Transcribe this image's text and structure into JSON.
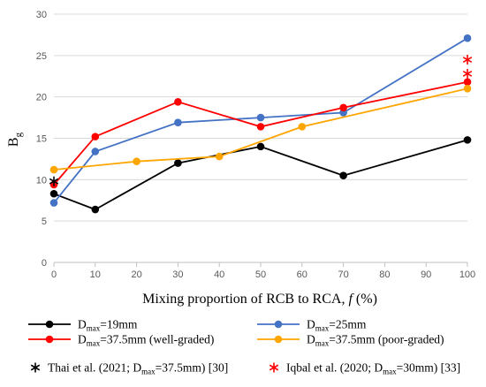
{
  "chart_data": {
    "type": "line",
    "xlabel_main": "Mixing proportion of RCB to RCA, ",
    "xlabel_var": "f",
    "xlabel_unit": " (%)",
    "ylabel_main": "B",
    "ylabel_sub": "g",
    "xlim": [
      0,
      100
    ],
    "ylim": [
      0,
      30
    ],
    "xticks": [
      "0",
      "10",
      "20",
      "30",
      "40",
      "50",
      "60",
      "70",
      "80",
      "90",
      "100"
    ],
    "yticks": [
      "0",
      "5",
      "10",
      "15",
      "20",
      "25",
      "30"
    ],
    "grid": "horizontal",
    "series": [
      {
        "name_main": "D",
        "name_sub": "max",
        "name_rest": "=19mm",
        "color": "#000000",
        "x": [
          0,
          10,
          30,
          50,
          70,
          100
        ],
        "y": [
          8.3,
          6.4,
          12.0,
          14.0,
          10.5,
          14.8
        ]
      },
      {
        "name_main": "D",
        "name_sub": "max",
        "name_rest": "=25mm",
        "color": "#4472C4",
        "x": [
          0,
          10,
          30,
          50,
          70,
          100
        ],
        "y": [
          7.2,
          13.4,
          16.9,
          17.5,
          18.1,
          27.1
        ]
      },
      {
        "name_main": "D",
        "name_sub": "max",
        "name_rest": "=37.5mm (well-graded)",
        "color": "#FF0000",
        "x": [
          0,
          10,
          30,
          50,
          70,
          100
        ],
        "y": [
          9.4,
          15.2,
          19.4,
          16.4,
          18.7,
          21.8
        ]
      },
      {
        "name_main": "D",
        "name_sub": "max",
        "name_rest": "=37.5mm (poor-graded)",
        "color": "#FFA500",
        "x": [
          0,
          20,
          40,
          60,
          100
        ],
        "y": [
          11.2,
          12.2,
          12.8,
          16.4,
          21.0
        ]
      }
    ],
    "points": [
      {
        "name_pre": "Thai et al. (2021; D",
        "name_sub": "max",
        "name_rest": "=37.5mm) [30]",
        "color": "#000000",
        "marker": "asterisk",
        "x": [
          0
        ],
        "y": [
          9.8
        ]
      },
      {
        "name_pre": "Iqbal et al. (2020; D",
        "name_sub": "max",
        "name_rest": "=30mm) [33]",
        "color": "#FF0000",
        "marker": "asterisk",
        "x": [
          100,
          100
        ],
        "y": [
          24.5,
          22.8
        ]
      }
    ]
  }
}
